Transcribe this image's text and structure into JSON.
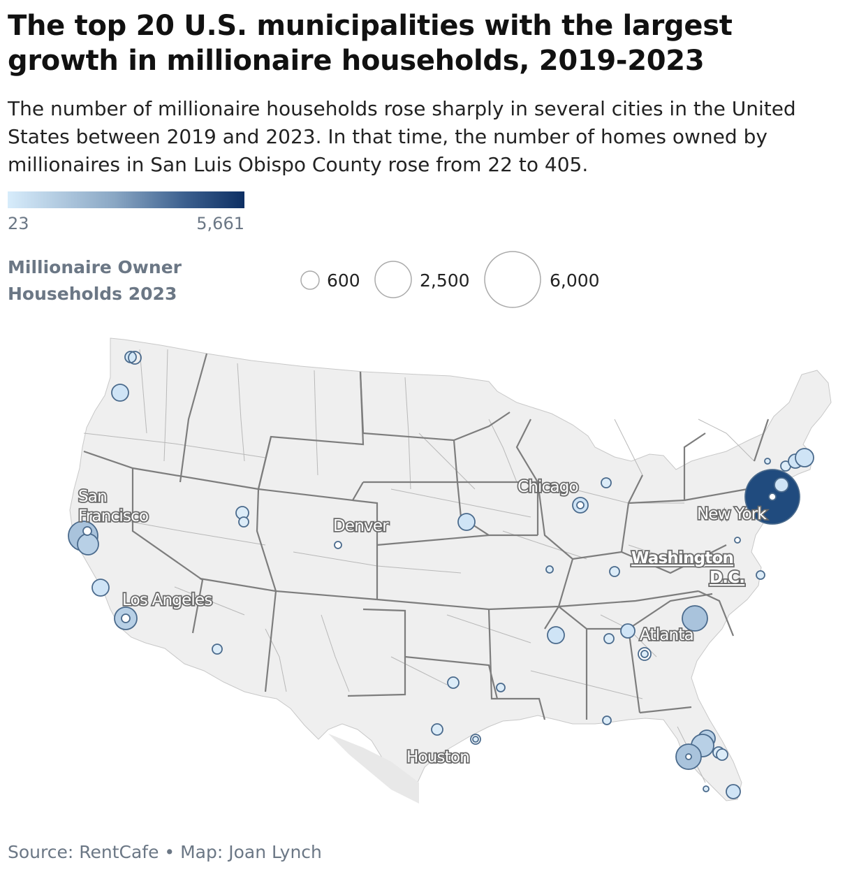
{
  "title": "The top 20 U.S. municipalities with the largest growth in millionaire households, 2019-2023",
  "subtitle": "The number of millionaire households rose sharply in several cities in the United States between 2019 and 2023. In that time, the number of homes owned by millionaires in San Luis Obispo County rose from 22 to 405.",
  "color_legend": {
    "min_label": "23",
    "max_label": "5,661",
    "min_color": "#d7ecfb",
    "max_color": "#0d2f63"
  },
  "size_legend": {
    "title": "Millionaire Owner Households 2023",
    "entries": [
      {
        "label": "600",
        "value": 600
      },
      {
        "label": "2,500",
        "value": 2500
      },
      {
        "label": "6,000",
        "value": 6000
      }
    ]
  },
  "city_labels": {
    "san_francisco_1": "San",
    "san_francisco_2": "Francisco",
    "los_angeles": "Los Angeles",
    "denver": "Denver",
    "chicago": "Chicago",
    "new_york": "New York",
    "washington_1": "Washington",
    "washington_2": "D.C.",
    "atlanta": "Atlanta",
    "houston": "Houston"
  },
  "colors": {
    "land": "#efefef",
    "state_border": "#7a7a7a",
    "county_border": "#b5b5b5",
    "bubble_stroke": "#4a6a8c"
  },
  "source": "Source: RentCafe • Map: Joan Lynch"
}
